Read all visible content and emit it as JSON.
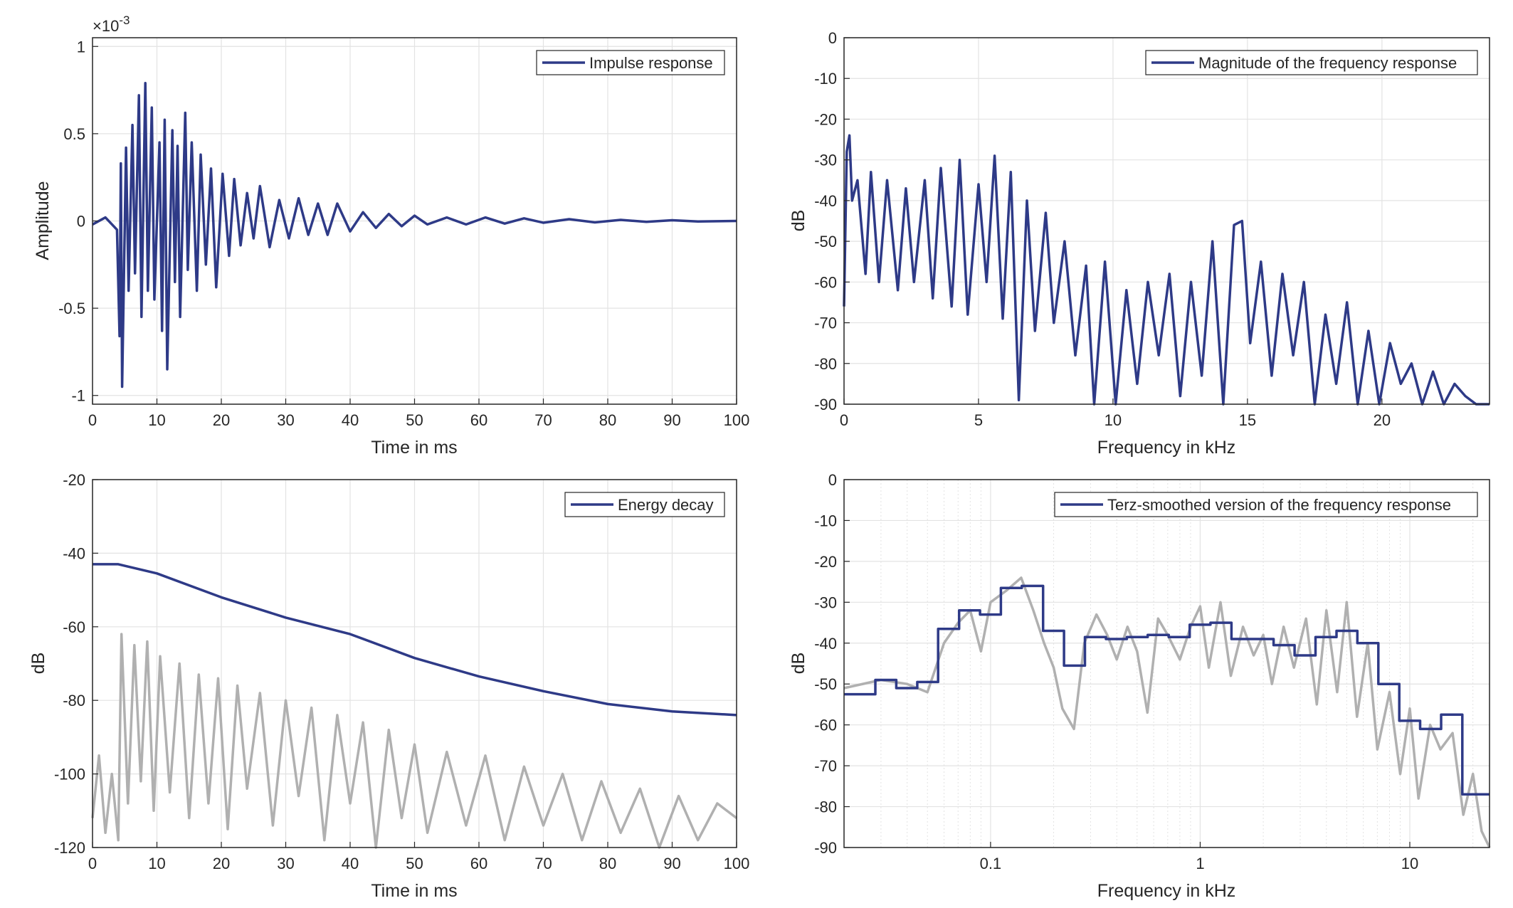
{
  "colors": {
    "series_blue": "#2e3a87",
    "series_gray": "#b0b0b0",
    "grid": "#e3e3e3",
    "axes": "#262626",
    "background": "#ffffff"
  },
  "chart_data": [
    {
      "id": "impulse",
      "type": "line",
      "xlabel": "Time in ms",
      "ylabel": "Amplitude",
      "exponent_label": "×10",
      "exponent_power": "-3",
      "xlim": [
        0,
        100
      ],
      "ylim": [
        -1.05,
        1.05
      ],
      "xticks": [
        0,
        10,
        20,
        30,
        40,
        50,
        60,
        70,
        80,
        90,
        100
      ],
      "xtick_labels": [
        "0",
        "10",
        "20",
        "30",
        "40",
        "50",
        "60",
        "70",
        "80",
        "90",
        "100"
      ],
      "yticks": [
        -1,
        -0.5,
        0,
        0.5,
        1
      ],
      "ytick_labels": [
        "-1",
        "-0.5",
        "0",
        "0.5",
        "1"
      ],
      "grid": true,
      "legend": {
        "position": "top-right",
        "entries": [
          "Impulse response"
        ]
      },
      "series": [
        {
          "name": "Impulse response",
          "color": "#2e3a87",
          "x": [
            0,
            2,
            3.8,
            4.2,
            4.4,
            4.6,
            5.2,
            5.6,
            6.2,
            6.6,
            7.2,
            7.6,
            8.2,
            8.6,
            9.2,
            9.6,
            10.4,
            10.8,
            11.2,
            11.6,
            12.4,
            12.8,
            13.2,
            13.6,
            14.4,
            14.8,
            15.4,
            16.2,
            16.8,
            17.6,
            18.4,
            19.2,
            20.2,
            21.2,
            22,
            23,
            24,
            25,
            26,
            27.5,
            29,
            30.5,
            32,
            33.5,
            35,
            36.5,
            38,
            40,
            42,
            44,
            46,
            48,
            50,
            52,
            55,
            58,
            61,
            64,
            67,
            70,
            74,
            78,
            82,
            86,
            90,
            94,
            100
          ],
          "y": [
            -0.02,
            0.02,
            -0.05,
            -0.66,
            0.33,
            -0.95,
            0.42,
            -0.4,
            0.55,
            -0.3,
            0.72,
            -0.55,
            0.79,
            -0.4,
            0.65,
            -0.45,
            0.45,
            -0.63,
            0.58,
            -0.85,
            0.52,
            -0.35,
            0.43,
            -0.55,
            0.62,
            -0.28,
            0.45,
            -0.4,
            0.38,
            -0.25,
            0.3,
            -0.38,
            0.27,
            -0.2,
            0.24,
            -0.14,
            0.16,
            -0.1,
            0.2,
            -0.15,
            0.12,
            -0.1,
            0.13,
            -0.08,
            0.1,
            -0.08,
            0.1,
            -0.06,
            0.05,
            -0.04,
            0.04,
            -0.03,
            0.03,
            -0.02,
            0.02,
            -0.02,
            0.02,
            -0.015,
            0.015,
            -0.01,
            0.01,
            -0.008,
            0.006,
            -0.005,
            0.004,
            -0.003,
            0
          ]
        }
      ]
    },
    {
      "id": "magnitude",
      "type": "line",
      "xlabel": "Frequency in kHz",
      "ylabel": "dB",
      "xlim": [
        0,
        24
      ],
      "ylim": [
        -90,
        0
      ],
      "xticks": [
        0,
        5,
        10,
        15,
        20
      ],
      "xtick_labels": [
        "0",
        "5",
        "10",
        "15",
        "20"
      ],
      "yticks": [
        0,
        -10,
        -20,
        -30,
        -40,
        -50,
        -60,
        -70,
        -80,
        -90
      ],
      "ytick_labels": [
        "0",
        "-10",
        "-20",
        "-30",
        "-40",
        "-50",
        "-60",
        "-70",
        "-80",
        "-90"
      ],
      "grid": true,
      "legend": {
        "position": "top-right",
        "entries": [
          "Magnitude of the frequency response"
        ]
      },
      "series": [
        {
          "name": "Magnitude of the frequency response",
          "color": "#2e3a87",
          "x": [
            0,
            0.1,
            0.2,
            0.3,
            0.5,
            0.8,
            1.0,
            1.3,
            1.6,
            2.0,
            2.3,
            2.6,
            3.0,
            3.3,
            3.6,
            4.0,
            4.3,
            4.6,
            5.0,
            5.3,
            5.6,
            5.9,
            6.2,
            6.5,
            6.8,
            7.1,
            7.5,
            7.8,
            8.2,
            8.6,
            9.0,
            9.3,
            9.7,
            10.1,
            10.5,
            10.9,
            11.3,
            11.7,
            12.1,
            12.5,
            12.9,
            13.3,
            13.7,
            14.1,
            14.5,
            14.8,
            15.1,
            15.5,
            15.9,
            16.3,
            16.7,
            17.1,
            17.5,
            17.9,
            18.3,
            18.7,
            19.1,
            19.5,
            19.9,
            20.3,
            20.7,
            21.1,
            21.5,
            21.9,
            22.3,
            22.7,
            23.1,
            23.5,
            24
          ],
          "y": [
            -66,
            -28,
            -24,
            -40,
            -35,
            -58,
            -33,
            -60,
            -35,
            -62,
            -37,
            -60,
            -35,
            -64,
            -32,
            -66,
            -30,
            -68,
            -36,
            -60,
            -29,
            -69,
            -33,
            -89,
            -40,
            -72,
            -43,
            -70,
            -50,
            -78,
            -56,
            -90,
            -55,
            -90,
            -62,
            -85,
            -60,
            -78,
            -58,
            -88,
            -60,
            -83,
            -50,
            -90,
            -46,
            -45,
            -75,
            -55,
            -83,
            -58,
            -78,
            -60,
            -90,
            -68,
            -85,
            -65,
            -90,
            -72,
            -90,
            -75,
            -85,
            -80,
            -90,
            -82,
            -90,
            -85,
            -88,
            -90,
            -90
          ]
        }
      ]
    },
    {
      "id": "energy",
      "type": "line",
      "xlabel": "Time in ms",
      "ylabel": "dB",
      "xlim": [
        0,
        100
      ],
      "ylim": [
        -120,
        -20
      ],
      "xticks": [
        0,
        10,
        20,
        30,
        40,
        50,
        60,
        70,
        80,
        90,
        100
      ],
      "xtick_labels": [
        "0",
        "10",
        "20",
        "30",
        "40",
        "50",
        "60",
        "70",
        "80",
        "90",
        "100"
      ],
      "yticks": [
        -20,
        -40,
        -60,
        -80,
        -100,
        -120
      ],
      "ytick_labels": [
        "-20",
        "-40",
        "-60",
        "-80",
        "-100",
        "-120"
      ],
      "grid": true,
      "legend": {
        "position": "top-right",
        "entries": [
          "Energy decay"
        ]
      },
      "series": [
        {
          "name": "",
          "color": "#b0b0b0",
          "x": [
            0,
            1,
            2,
            3,
            4,
            4.5,
            5.5,
            6.5,
            7.5,
            8.5,
            9.5,
            10.5,
            12,
            13.5,
            15,
            16.5,
            18,
            19.5,
            21,
            22.5,
            24,
            26,
            28,
            30,
            32,
            34,
            36,
            38,
            40,
            42,
            44,
            46,
            48,
            50,
            52,
            55,
            58,
            61,
            64,
            67,
            70,
            73,
            76,
            79,
            82,
            85,
            88,
            91,
            94,
            97,
            100
          ],
          "y": [
            -112,
            -95,
            -116,
            -100,
            -118,
            -62,
            -108,
            -65,
            -102,
            -64,
            -110,
            -68,
            -105,
            -70,
            -112,
            -73,
            -108,
            -74,
            -115,
            -76,
            -104,
            -78,
            -114,
            -80,
            -106,
            -82,
            -118,
            -84,
            -108,
            -86,
            -120,
            -88,
            -112,
            -92,
            -116,
            -94,
            -114,
            -95,
            -118,
            -98,
            -114,
            -100,
            -118,
            -102,
            -116,
            -104,
            -120,
            -106,
            -118,
            -108,
            -112
          ]
        },
        {
          "name": "Energy decay",
          "color": "#2e3a87",
          "x": [
            0,
            4,
            10,
            20,
            30,
            40,
            50,
            60,
            70,
            80,
            90,
            100
          ],
          "y": [
            -43,
            -43,
            -45.5,
            -52,
            -57.5,
            -62,
            -68.5,
            -73.5,
            -77.5,
            -81,
            -83,
            -84
          ]
        }
      ]
    },
    {
      "id": "terz",
      "type": "line",
      "xscale": "log",
      "xlabel": "Frequency in kHz",
      "ylabel": "dB",
      "xlim": [
        0.02,
        24
      ],
      "ylim": [
        -90,
        0
      ],
      "xticks": [
        0.1,
        1,
        10
      ],
      "xtick_labels": [
        "0.1",
        "1",
        "10"
      ],
      "yticks": [
        0,
        -10,
        -20,
        -30,
        -40,
        -50,
        -60,
        -70,
        -80,
        -90
      ],
      "ytick_labels": [
        "0",
        "-10",
        "-20",
        "-30",
        "-40",
        "-50",
        "-60",
        "-70",
        "-80",
        "-90"
      ],
      "grid": true,
      "legend": {
        "position": "top-right",
        "entries": [
          "Terz-smoothed version of the frequency response"
        ]
      },
      "series": [
        {
          "name": "",
          "color": "#b0b0b0",
          "x": [
            0.02,
            0.03,
            0.04,
            0.05,
            0.06,
            0.07,
            0.08,
            0.09,
            0.1,
            0.12,
            0.14,
            0.16,
            0.18,
            0.2,
            0.22,
            0.25,
            0.28,
            0.32,
            0.36,
            0.4,
            0.45,
            0.5,
            0.56,
            0.63,
            0.7,
            0.8,
            0.9,
            1.0,
            1.1,
            1.25,
            1.4,
            1.6,
            1.8,
            2.0,
            2.2,
            2.5,
            2.8,
            3.2,
            3.6,
            4.0,
            4.5,
            5.0,
            5.6,
            6.3,
            7.0,
            8.0,
            9.0,
            10,
            11,
            12.5,
            14,
            16,
            18,
            20,
            22,
            24
          ],
          "y": [
            -51,
            -49,
            -50,
            -52,
            -40,
            -35,
            -32,
            -42,
            -30,
            -27,
            -24,
            -32,
            -40,
            -46,
            -56,
            -61,
            -40,
            -33,
            -38,
            -44,
            -36,
            -42,
            -57,
            -34,
            -38,
            -44,
            -36,
            -31,
            -46,
            -30,
            -48,
            -36,
            -43,
            -38,
            -50,
            -36,
            -46,
            -34,
            -55,
            -32,
            -52,
            -30,
            -58,
            -40,
            -66,
            -52,
            -72,
            -56,
            -78,
            -60,
            -66,
            -62,
            -82,
            -72,
            -86,
            -90
          ]
        },
        {
          "name": "Terz-smoothed version of the frequency response",
          "color": "#2e3a87",
          "step": true,
          "edges": [
            0.02,
            0.0282,
            0.0355,
            0.0447,
            0.0562,
            0.0708,
            0.0891,
            0.112,
            0.141,
            0.178,
            0.224,
            0.282,
            0.355,
            0.447,
            0.562,
            0.708,
            0.891,
            1.12,
            1.41,
            1.78,
            2.24,
            2.82,
            3.55,
            4.47,
            5.62,
            7.08,
            8.91,
            11.2,
            14.1,
            17.8,
            24
          ],
          "values": [
            -52.5,
            -49,
            -51,
            -49.5,
            -36.5,
            -32,
            -33,
            -26.5,
            -26,
            -37,
            -45.5,
            -38.5,
            -39,
            -38.5,
            -38,
            -38.5,
            -35.5,
            -35,
            -39,
            -39,
            -40.5,
            -43,
            -38.5,
            -37,
            -40,
            -50,
            -59,
            -61,
            -57.5,
            -77
          ]
        }
      ]
    }
  ]
}
